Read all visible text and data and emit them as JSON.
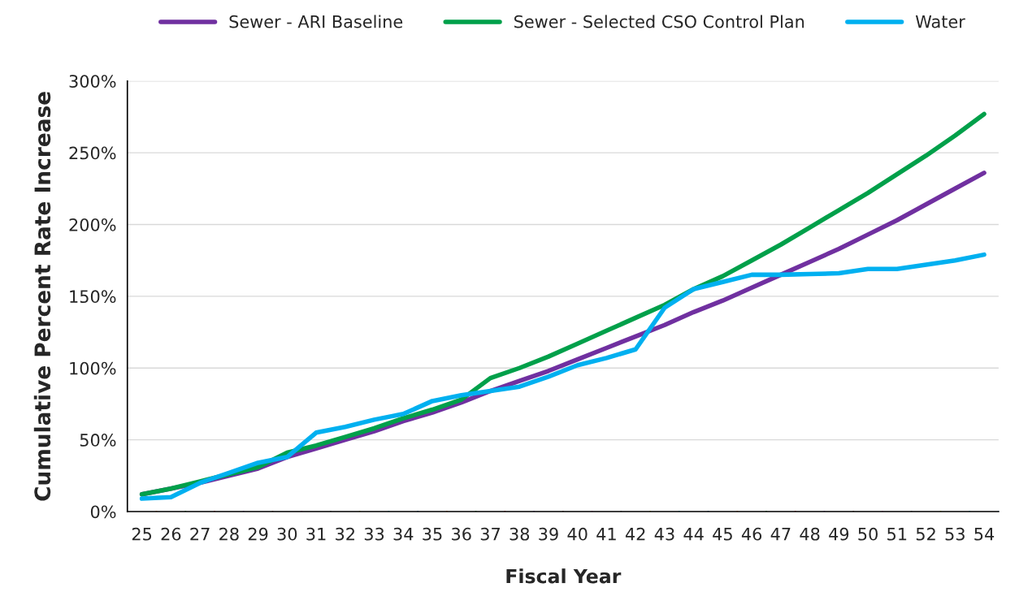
{
  "chart_data": {
    "type": "line",
    "xlabel": "Fiscal Year",
    "ylabel": "Cumulative Percent Rate Increase",
    "categories": [
      "25",
      "26",
      "27",
      "28",
      "29",
      "30",
      "31",
      "32",
      "33",
      "34",
      "35",
      "36",
      "37",
      "38",
      "39",
      "40",
      "41",
      "42",
      "43",
      "44",
      "45",
      "46",
      "47",
      "48",
      "49",
      "50",
      "51",
      "52",
      "53",
      "54"
    ],
    "series": [
      {
        "name": "Sewer - ARI Baseline",
        "color": "#7030a0",
        "values": [
          12,
          16,
          20,
          25,
          30,
          38,
          44,
          50,
          56,
          63,
          69,
          76,
          84,
          91,
          98,
          106,
          114,
          122,
          130,
          139,
          147,
          156,
          165,
          174,
          183,
          193,
          203,
          214,
          225,
          236
        ]
      },
      {
        "name": "Sewer - Selected CSO Control Plan",
        "color": "#00a04a",
        "values": [
          12,
          16,
          21,
          26,
          31,
          41,
          46,
          52,
          58,
          65,
          71,
          78,
          93,
          100,
          108,
          117,
          126,
          135,
          144,
          155,
          164,
          175,
          186,
          198,
          210,
          222,
          235,
          248,
          262,
          277
        ]
      },
      {
        "name": "Water",
        "color": "#00b0f0",
        "values": [
          9,
          10,
          20,
          27,
          34,
          38,
          55,
          59,
          64,
          68,
          77,
          81,
          84,
          87,
          94,
          102,
          107,
          113,
          142,
          155,
          160,
          165,
          165,
          165.5,
          166,
          169,
          169,
          172,
          175,
          179
        ]
      }
    ],
    "ylim": [
      0,
      300
    ],
    "yticks": [
      {
        "value": 0,
        "label": "0%"
      },
      {
        "value": 50,
        "label": "50%"
      },
      {
        "value": 100,
        "label": "100%"
      },
      {
        "value": 150,
        "label": "150%"
      },
      {
        "value": 200,
        "label": "200%"
      },
      {
        "value": 250,
        "label": "250%"
      },
      {
        "value": 300,
        "label": "300%"
      }
    ],
    "grid": "y",
    "legend": "top",
    "marker": "none",
    "line_style": "solid"
  }
}
